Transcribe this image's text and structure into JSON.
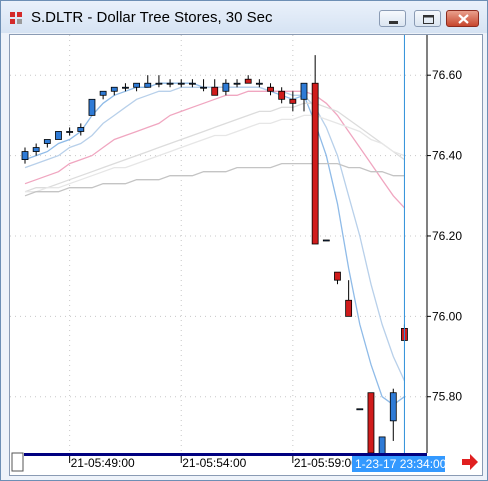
{
  "window": {
    "title": "S.DLTR - Dollar Tree Stores, 30 Sec"
  },
  "colors": {
    "up_candle": "#2f7bd6",
    "down_candle": "#d01c1c",
    "grid": "#c8c8c8",
    "crosshair": "#2e8fd9",
    "axis_bar": "#000080",
    "cursor_label_bg": "#3399ff",
    "scroll_arrow": "#e02020"
  },
  "chart_data": {
    "type": "candlestick",
    "title": "S.DLTR - Dollar Tree Stores, 30 Sec",
    "ylim": [
      75.66,
      76.7
    ],
    "yticks": [
      75.8,
      76.0,
      76.2,
      76.4,
      76.6
    ],
    "ytick_labels": [
      "75.80",
      "76.00",
      "76.20",
      "76.40",
      "76.60"
    ],
    "xtick_labels": [
      "21-05:49:00",
      "21-05:54:00",
      "21-05:59:00"
    ],
    "xtick_bar_index": [
      4,
      14,
      24
    ],
    "cursor_label": "1-23-17 23:34:00",
    "grid": true,
    "candles": [
      {
        "o": 76.39,
        "h": 76.42,
        "l": 76.38,
        "c": 76.41
      },
      {
        "o": 76.41,
        "h": 76.43,
        "l": 76.4,
        "c": 76.42
      },
      {
        "o": 76.43,
        "h": 76.44,
        "l": 76.42,
        "c": 76.44
      },
      {
        "o": 76.44,
        "h": 76.46,
        "l": 76.44,
        "c": 76.46
      },
      {
        "o": 76.46,
        "h": 76.47,
        "l": 76.45,
        "c": 76.46
      },
      {
        "o": 76.46,
        "h": 76.48,
        "l": 76.45,
        "c": 76.47
      },
      {
        "o": 76.5,
        "h": 76.54,
        "l": 76.5,
        "c": 76.54
      },
      {
        "o": 76.55,
        "h": 76.56,
        "l": 76.54,
        "c": 76.56
      },
      {
        "o": 76.56,
        "h": 76.57,
        "l": 76.55,
        "c": 76.57
      },
      {
        "o": 76.57,
        "h": 76.58,
        "l": 76.56,
        "c": 76.57
      },
      {
        "o": 76.57,
        "h": 76.58,
        "l": 76.56,
        "c": 76.58
      },
      {
        "o": 76.57,
        "h": 76.6,
        "l": 76.57,
        "c": 76.58
      },
      {
        "o": 76.58,
        "h": 76.6,
        "l": 76.57,
        "c": 76.58
      },
      {
        "o": 76.58,
        "h": 76.59,
        "l": 76.57,
        "c": 76.58
      },
      {
        "o": 76.58,
        "h": 76.59,
        "l": 76.57,
        "c": 76.58
      },
      {
        "o": 76.58,
        "h": 76.59,
        "l": 76.57,
        "c": 76.58
      },
      {
        "o": 76.57,
        "h": 76.59,
        "l": 76.56,
        "c": 76.57
      },
      {
        "o": 76.57,
        "h": 76.59,
        "l": 76.56,
        "c": 76.55
      },
      {
        "o": 76.56,
        "h": 76.59,
        "l": 76.55,
        "c": 76.58
      },
      {
        "o": 76.58,
        "h": 76.59,
        "l": 76.57,
        "c": 76.58
      },
      {
        "o": 76.59,
        "h": 76.6,
        "l": 76.58,
        "c": 76.58
      },
      {
        "o": 76.58,
        "h": 76.59,
        "l": 76.57,
        "c": 76.58
      },
      {
        "o": 76.57,
        "h": 76.58,
        "l": 76.55,
        "c": 76.56
      },
      {
        "o": 76.56,
        "h": 76.57,
        "l": 76.53,
        "c": 76.54
      },
      {
        "o": 76.54,
        "h": 76.56,
        "l": 76.51,
        "c": 76.53
      },
      {
        "o": 76.54,
        "h": 76.58,
        "l": 76.51,
        "c": 76.58
      },
      {
        "o": 76.58,
        "h": 76.65,
        "l": 76.18,
        "c": 76.18
      },
      {
        "o": 76.19,
        "h": 76.19,
        "l": 76.19,
        "c": 76.19
      },
      {
        "o": 76.11,
        "h": 76.11,
        "l": 76.08,
        "c": 76.09
      },
      {
        "o": 76.04,
        "h": 76.09,
        "l": 76.0,
        "c": 76.0
      },
      {
        "o": 75.77,
        "h": 75.77,
        "l": 75.77,
        "c": 75.77
      },
      {
        "o": 75.81,
        "h": 75.81,
        "l": 75.66,
        "c": 75.66
      },
      {
        "o": 75.64,
        "h": 75.7,
        "l": 75.64,
        "c": 75.7
      },
      {
        "o": 75.74,
        "h": 75.82,
        "l": 75.69,
        "c": 75.81
      },
      {
        "o": 75.97,
        "h": 75.98,
        "l": 75.94,
        "c": 75.94
      }
    ],
    "moving_averages": [
      {
        "color": "#8fbbe8",
        "values": [
          76.39,
          76.4,
          76.41,
          76.43,
          76.44,
          76.46,
          76.5,
          76.53,
          76.55,
          76.56,
          76.57,
          76.57,
          76.58,
          76.58,
          76.58,
          76.58,
          76.57,
          76.57,
          76.57,
          76.57,
          76.57,
          76.57,
          76.56,
          76.55,
          76.54,
          76.55,
          76.48,
          76.4,
          76.28,
          76.12,
          75.98,
          75.88,
          75.8,
          75.78,
          75.8
        ]
      },
      {
        "color": "#b8d0ea",
        "values": [
          76.37,
          76.38,
          76.39,
          76.4,
          76.42,
          76.43,
          76.45,
          76.48,
          76.5,
          76.52,
          76.54,
          76.55,
          76.56,
          76.56,
          76.57,
          76.57,
          76.57,
          76.57,
          76.57,
          76.57,
          76.57,
          76.57,
          76.56,
          76.56,
          76.55,
          76.55,
          76.52,
          76.47,
          76.4,
          76.3,
          76.2,
          76.08,
          75.98,
          75.9,
          75.84
        ]
      },
      {
        "color": "#f0a6c0",
        "values": [
          76.33,
          76.34,
          76.35,
          76.36,
          76.38,
          76.39,
          76.4,
          76.42,
          76.44,
          76.45,
          76.46,
          76.47,
          76.48,
          76.5,
          76.51,
          76.52,
          76.53,
          76.54,
          76.55,
          76.55,
          76.56,
          76.56,
          76.56,
          76.56,
          76.56,
          76.56,
          76.55,
          76.53,
          76.5,
          76.46,
          76.42,
          76.38,
          76.34,
          76.3,
          76.27
        ]
      },
      {
        "color": "#dcdcdc",
        "values": [
          76.31,
          76.32,
          76.32,
          76.33,
          76.34,
          76.35,
          76.36,
          76.37,
          76.38,
          76.39,
          76.4,
          76.41,
          76.42,
          76.43,
          76.44,
          76.45,
          76.46,
          76.47,
          76.48,
          76.49,
          76.5,
          76.51,
          76.51,
          76.52,
          76.52,
          76.53,
          76.53,
          76.52,
          76.51,
          76.49,
          76.47,
          76.45,
          76.43,
          76.41,
          76.39
        ]
      },
      {
        "color": "#e6e6e6",
        "values": [
          76.31,
          76.31,
          76.32,
          76.32,
          76.33,
          76.34,
          76.35,
          76.36,
          76.37,
          76.37,
          76.38,
          76.39,
          76.4,
          76.41,
          76.42,
          76.43,
          76.44,
          76.45,
          76.45,
          76.46,
          76.47,
          76.48,
          76.48,
          76.49,
          76.49,
          76.5,
          76.5,
          76.49,
          76.48,
          76.47,
          76.46,
          76.44,
          76.43,
          76.41,
          76.4
        ]
      },
      {
        "color": "#c4c4c4",
        "values": [
          76.3,
          76.31,
          76.31,
          76.31,
          76.32,
          76.32,
          76.32,
          76.33,
          76.33,
          76.33,
          76.34,
          76.34,
          76.34,
          76.35,
          76.35,
          76.35,
          76.36,
          76.36,
          76.36,
          76.37,
          76.37,
          76.37,
          76.37,
          76.38,
          76.38,
          76.38,
          76.38,
          76.38,
          76.38,
          76.37,
          76.37,
          76.36,
          76.36,
          76.35,
          76.35
        ]
      }
    ]
  }
}
